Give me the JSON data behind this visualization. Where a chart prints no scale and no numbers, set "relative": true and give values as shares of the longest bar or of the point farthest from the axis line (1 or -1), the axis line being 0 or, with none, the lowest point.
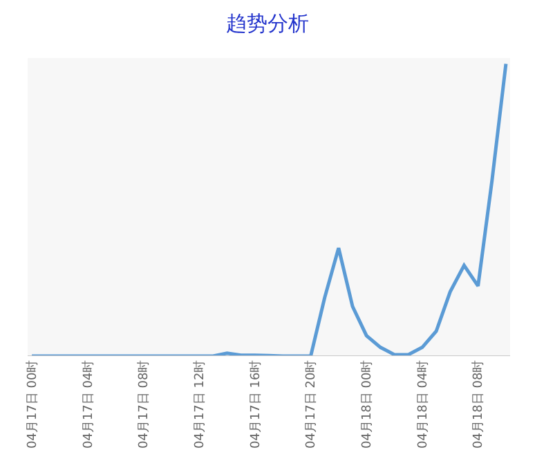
{
  "chart_data": {
    "type": "line",
    "title": "趋势分析",
    "relative": true,
    "marker": "none",
    "line_style": "solid",
    "categories": [
      "04月17日 00时",
      null,
      null,
      null,
      "04月17日 04时",
      null,
      null,
      null,
      "04月17日 08时",
      null,
      null,
      null,
      "04月17日 12时",
      null,
      null,
      null,
      "04月17日 16时",
      null,
      null,
      null,
      "04月17日 20时",
      null,
      null,
      null,
      "04月18日 00时",
      null,
      null,
      null,
      "04月18日 04时",
      null,
      null,
      null,
      "04月18日 08时",
      null,
      null
    ],
    "series": [
      {
        "color": "#5b9bd5",
        "values": [
          0,
          0,
          0,
          0,
          0,
          0,
          0,
          0,
          0,
          0,
          0,
          0,
          0,
          0,
          0.01,
          0.003,
          0.003,
          0.002,
          0,
          0,
          0,
          0.2,
          0.37,
          0.17,
          0.07,
          0.03,
          0.005,
          0.005,
          0.03,
          0.085,
          0.22,
          0.31,
          0.24,
          0.6,
          1
        ]
      }
    ]
  }
}
